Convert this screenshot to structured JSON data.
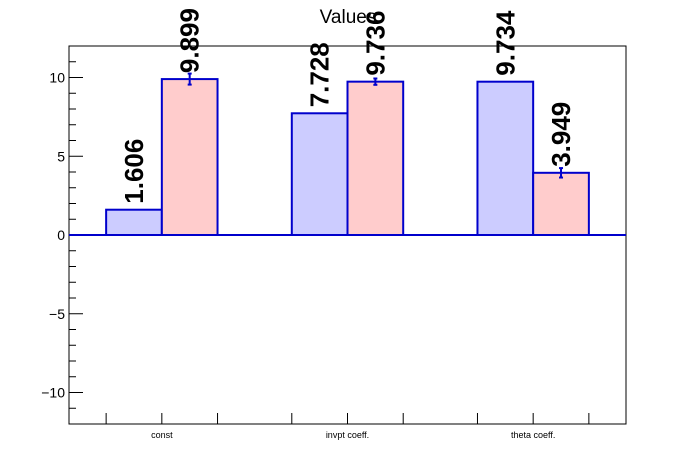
{
  "chart_data": {
    "type": "bar",
    "title": "Values",
    "xlabel": "",
    "ylabel": "",
    "categories": [
      "const",
      "invpt coeff.",
      "theta coeff."
    ],
    "series": [
      {
        "values": [
          1.606,
          7.728,
          9.734
        ],
        "errors": [
          0,
          0,
          0
        ],
        "labels": [
          "1.606",
          "7.728",
          "9.734"
        ]
      },
      {
        "values": [
          9.899,
          9.736,
          3.949
        ],
        "errors": [
          0.35,
          0.2,
          0.3
        ],
        "labels": [
          "9.899",
          "9.736",
          "3.949"
        ]
      }
    ],
    "ylim": [
      -12,
      12
    ],
    "yticks": [
      -10,
      -5,
      0,
      5,
      10
    ],
    "ytick_labels": [
      "−10",
      "−5",
      "0",
      "5",
      "10"
    ],
    "grid": false,
    "legend": "none",
    "colors": {
      "series_fill": [
        "#ccccff",
        "#ffcccc"
      ],
      "bar_edge": "#0000cc",
      "axis": "#000000",
      "zero_line": "#0000cc"
    }
  }
}
